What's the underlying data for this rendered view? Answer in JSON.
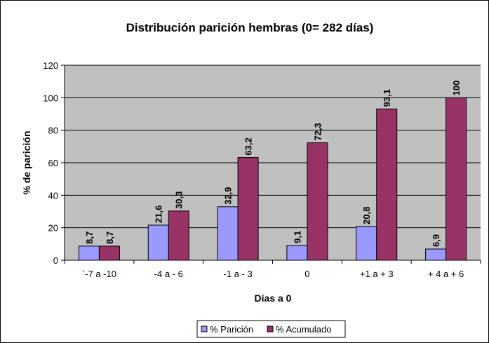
{
  "chart_data": {
    "type": "bar",
    "title": "Distribución parición hembras (0= 282 días)",
    "xlabel": "Días a 0",
    "ylabel": "% de parición",
    "categories": [
      "`-7 a -10",
      "-4 a - 6",
      "-1 a - 3",
      "0",
      "+1 a + 3",
      "+ 4 a + 6"
    ],
    "series": [
      {
        "name": "% Parición",
        "values": [
          8.7,
          21.6,
          32.9,
          9.1,
          20.8,
          6.9
        ],
        "labels": [
          "8,7",
          "21,6",
          "32,9",
          "9,1",
          "20,8",
          "6,9"
        ],
        "color": "#9999ff"
      },
      {
        "name": "% Acumulado",
        "values": [
          8.7,
          30.3,
          63.2,
          72.3,
          93.1,
          100
        ],
        "labels": [
          "8,7",
          "30,3",
          "63,2",
          "72,3",
          "93,1",
          "100"
        ],
        "color": "#993366"
      }
    ],
    "ylim": [
      0,
      120
    ],
    "yticks": [
      0,
      20,
      40,
      60,
      80,
      100,
      120
    ],
    "grid": true,
    "plot_background": "#c0c0c0",
    "legend_position": "bottom"
  }
}
